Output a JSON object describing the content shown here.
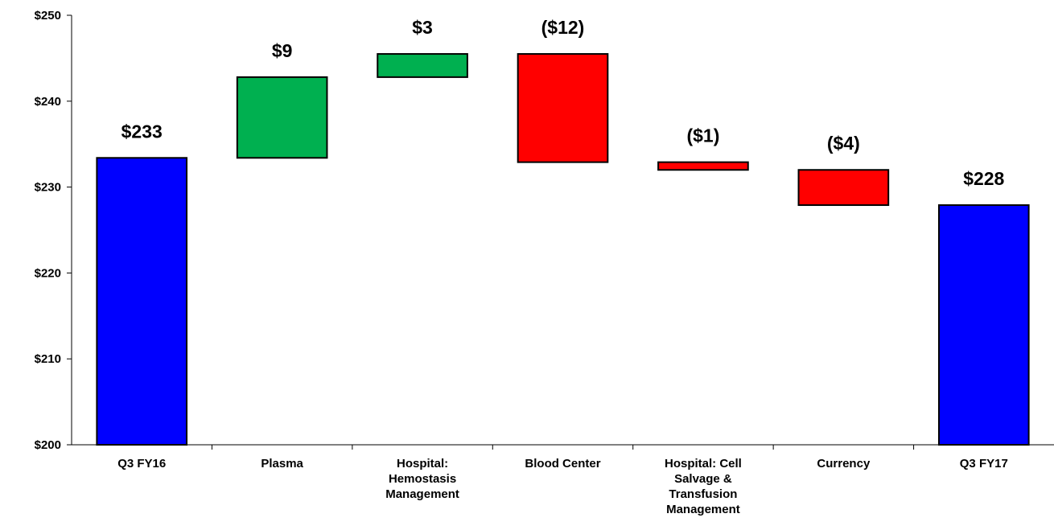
{
  "chart_data": {
    "type": "bar",
    "subtype": "waterfall",
    "categories": [
      [
        "Q3 FY16"
      ],
      [
        "Plasma"
      ],
      [
        "Hospital:",
        "Hemostasis",
        "Management"
      ],
      [
        "Blood Center"
      ],
      [
        "Hospital: Cell",
        "Salvage &",
        "Transfusion",
        "Management"
      ],
      [
        "Currency"
      ],
      [
        "Q3 FY17"
      ]
    ],
    "bars": [
      {
        "kind": "total",
        "start": 200,
        "end": 233.4,
        "label": "$233"
      },
      {
        "kind": "increase",
        "start": 233.4,
        "end": 242.8,
        "label": "$9"
      },
      {
        "kind": "increase",
        "start": 242.8,
        "end": 245.5,
        "label": "$3"
      },
      {
        "kind": "decrease",
        "start": 245.5,
        "end": 232.9,
        "label": "($12)"
      },
      {
        "kind": "decrease",
        "start": 232.9,
        "end": 232.0,
        "label": "($1)"
      },
      {
        "kind": "decrease",
        "start": 232.0,
        "end": 227.9,
        "label": "($4)"
      },
      {
        "kind": "total",
        "start": 200,
        "end": 227.9,
        "label": "$228"
      }
    ],
    "ylim": [
      200,
      250
    ],
    "yticks": [
      200,
      210,
      220,
      230,
      240,
      250
    ],
    "ytick_labels": [
      "$200",
      "$210",
      "$220",
      "$230",
      "$240",
      "$250"
    ],
    "colors": {
      "total": "#0000FF",
      "increase": "#00B050",
      "decrease": "#FF0000"
    },
    "grid": false,
    "legend": "none"
  }
}
